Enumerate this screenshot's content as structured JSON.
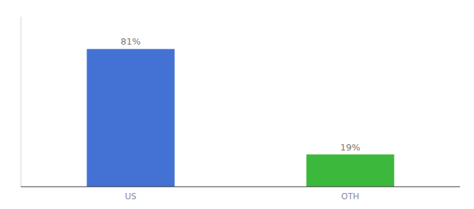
{
  "chart_data": {
    "type": "bar",
    "categories": [
      "US",
      "OTH"
    ],
    "values": [
      81,
      19
    ],
    "value_labels": [
      "81%",
      "19%"
    ],
    "colors": [
      "#4472d4",
      "#3cb83c"
    ],
    "ylim": [
      0,
      100
    ],
    "data_labels": true,
    "tick_labels": "x",
    "grid": false
  }
}
